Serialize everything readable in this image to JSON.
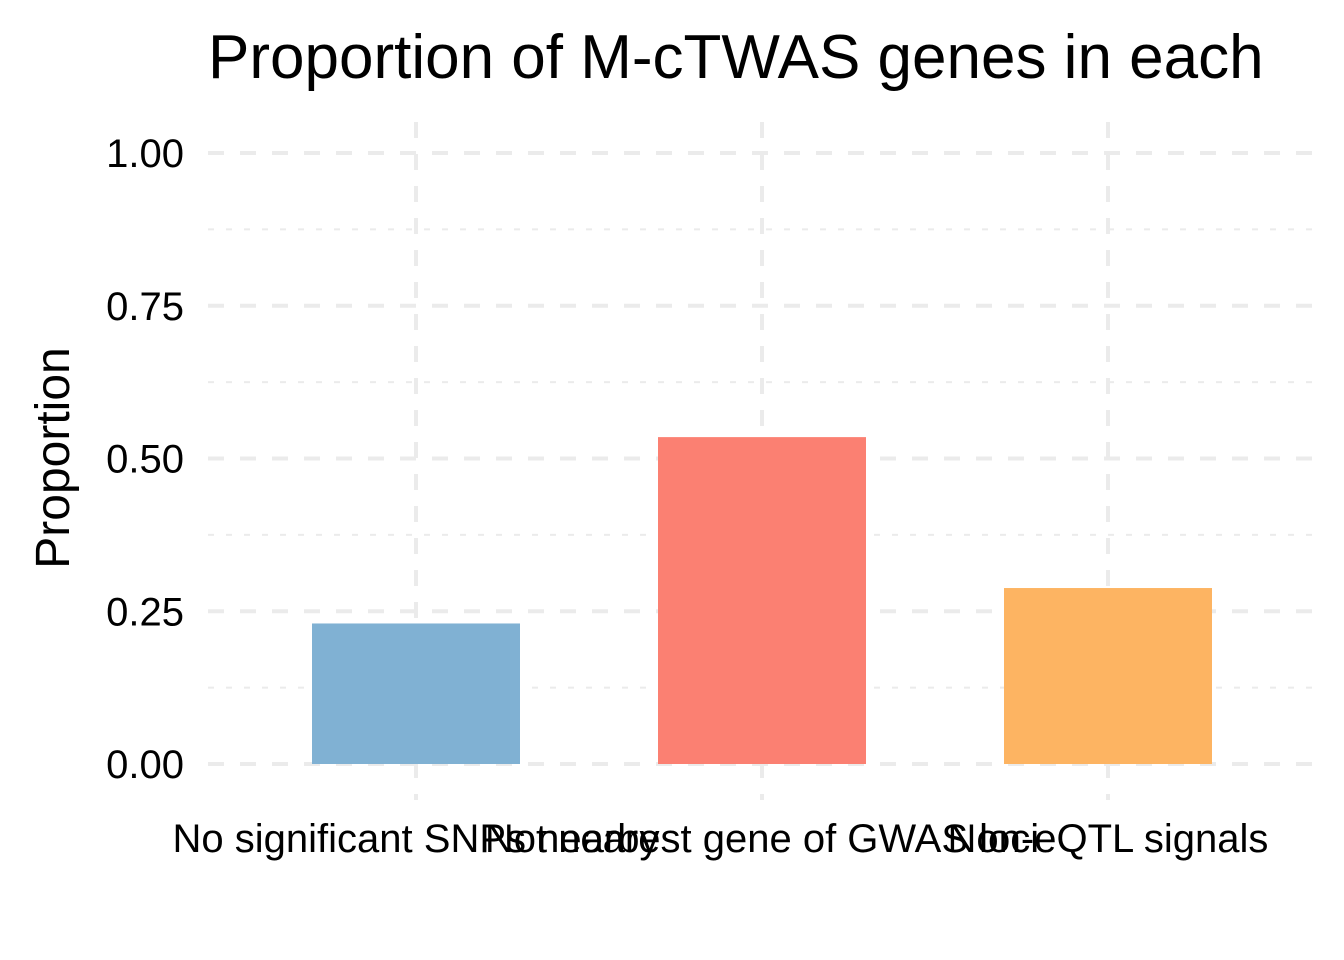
{
  "chart_data": {
    "type": "bar",
    "title": "Proportion of M-cTWAS genes in each",
    "xlabel": "",
    "ylabel": "Proportion",
    "categories": [
      "No significant SNPs nearby",
      "Not nearest gene of GWAS loci",
      "Non-eQTL signals"
    ],
    "values": [
      0.23,
      0.535,
      0.288
    ],
    "colors": [
      "#80B1D3",
      "#FB8072",
      "#FDB462"
    ],
    "ylim": [
      0,
      1
    ],
    "yticks": [
      0,
      0.25,
      0.5,
      0.75,
      1.0
    ],
    "ytick_labels": [
      "0.00",
      "0.25",
      "0.50",
      "0.75",
      "1.00"
    ],
    "grid": true,
    "legend": "none"
  }
}
